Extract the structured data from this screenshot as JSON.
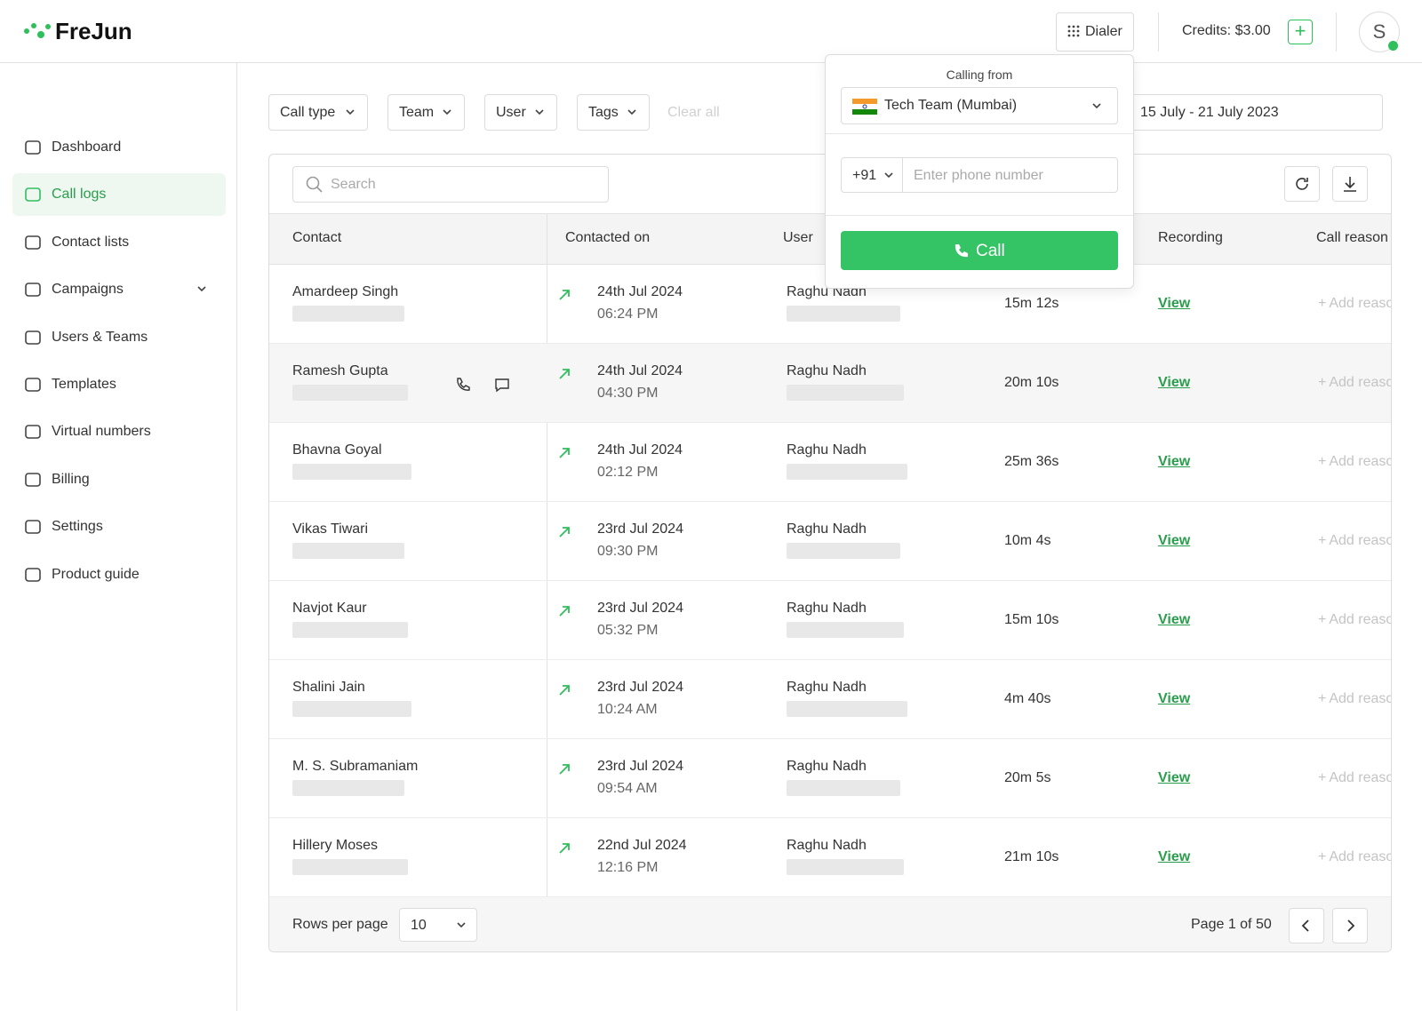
{
  "header": {
    "logo": "FreJun",
    "dialer": "Dialer",
    "credits": "Credits: $3.00",
    "avatar": "S"
  },
  "sidebar": {
    "items": [
      "Dashboard",
      "Call logs",
      "Contact lists",
      "Campaigns",
      "Users & Teams",
      "Templates",
      "Virtual numbers",
      "Billing",
      "Settings",
      "Product guide"
    ],
    "active": 1
  },
  "filters": {
    "items": [
      "Call type",
      "Team",
      "User",
      "Tags"
    ],
    "clear_all": "Clear all",
    "date_range": "15 July - 21 July 2023"
  },
  "search_placeholder": "Search",
  "table": {
    "columns": [
      "Contact",
      "Contacted on",
      "User",
      "Recording",
      "Call reason"
    ],
    "rows": [
      {
        "contact": "Amardeep Singh",
        "date": "24th Jul 2024",
        "time": "06:24 PM",
        "user": "Raghu Nadh",
        "duration": "15m 12s",
        "recording": "View",
        "reason": "Add reason"
      },
      {
        "contact": "Ramesh Gupta",
        "date": "24th Jul 2024",
        "time": "04:30 PM",
        "user": "Raghu Nadh",
        "duration": "20m 10s",
        "recording": "View",
        "reason": "Add reason"
      },
      {
        "contact": "Bhavna Goyal",
        "date": "24th Jul 2024",
        "time": "02:12 PM",
        "user": "Raghu Nadh",
        "duration": "25m 36s",
        "recording": "View",
        "reason": "Add reason"
      },
      {
        "contact": "Vikas Tiwari",
        "date": "23rd Jul 2024",
        "time": "09:30 PM",
        "user": "Raghu Nadh",
        "duration": "10m 4s",
        "recording": "View",
        "reason": "Add reason"
      },
      {
        "contact": "Navjot Kaur",
        "date": "23rd Jul 2024",
        "time": "05:32 PM",
        "user": "Raghu Nadh",
        "duration": "15m 10s",
        "recording": "View",
        "reason": "Add reason"
      },
      {
        "contact": "Shalini Jain",
        "date": "23rd Jul 2024",
        "time": "10:24 AM",
        "user": "Raghu Nadh",
        "duration": "4m 40s",
        "recording": "View",
        "reason": "Add reason"
      },
      {
        "contact": "M. S. Subramaniam",
        "date": "23rd Jul 2024",
        "time": "09:54 AM",
        "user": "Raghu Nadh",
        "duration": "20m 5s",
        "recording": "View",
        "reason": "Add reason"
      },
      {
        "contact": "Hillery Moses",
        "date": "22nd Jul 2024",
        "time": "12:16 PM",
        "user": "Raghu Nadh",
        "duration": "21m 10s",
        "recording": "View",
        "reason": "Add reason"
      }
    ]
  },
  "pagination": {
    "rows_per_page_label": "Rows per page",
    "rows_per_page": "10",
    "page": "Page 1 of 50"
  },
  "dialer": {
    "calling_from": "Calling from",
    "team": "Tech Team (Mumbai)",
    "country_code": "+91",
    "phone_placeholder": "Enter phone number",
    "call": "Call"
  }
}
